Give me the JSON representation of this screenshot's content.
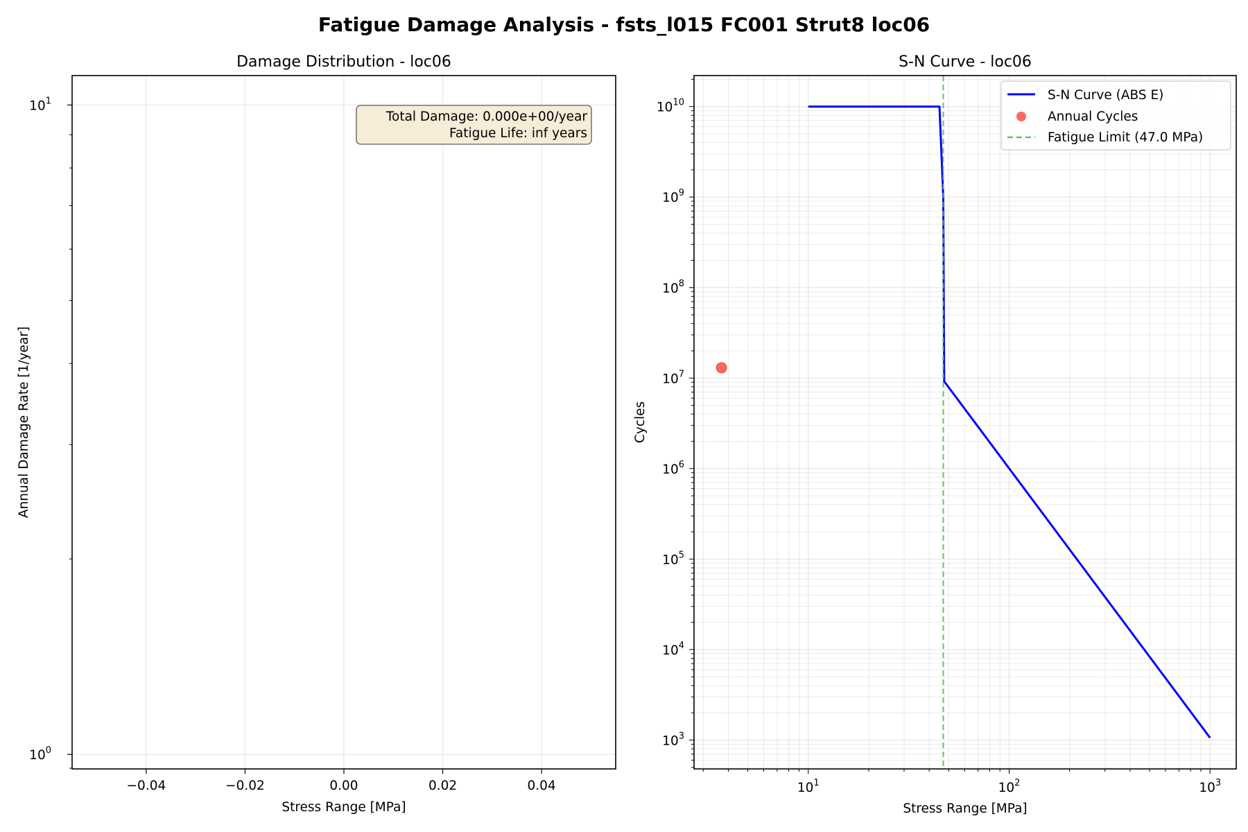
{
  "figure": {
    "title": "Fatigue Damage Analysis - fsts_l015 FC001 Strut8 loc06"
  },
  "chart_data": [
    {
      "type": "bar",
      "title": "Damage Distribution - loc06",
      "xlabel": "Stress Range [MPa]",
      "ylabel": "Annual Damage Rate [1/year]",
      "xlim": [
        -0.055,
        0.055
      ],
      "ylim": [
        0.95,
        11.1
      ],
      "yscale": "log",
      "xticks": [
        -0.04,
        -0.02,
        0.0,
        0.02,
        0.04
      ],
      "xtick_labels": [
        "−0.04",
        "−0.02",
        "0.00",
        "0.02",
        "0.04"
      ],
      "yticks_major": [
        {
          "value": 1,
          "base": "10",
          "exp": "0"
        },
        {
          "value": 10,
          "base": "10",
          "exp": "1"
        }
      ],
      "yticks_minor": [
        2,
        3,
        4,
        5,
        6,
        7,
        8,
        9
      ],
      "grid": true,
      "categories": [],
      "values": [],
      "annotation": {
        "lines": [
          "Total Damage: 0.000e+00/year",
          "Fatigue Life: inf years"
        ],
        "placement": "top-right",
        "face_color": "#f7ecd8"
      }
    },
    {
      "type": "line",
      "title": "S-N Curve - loc06",
      "xlabel": "Stress Range [MPa]",
      "ylabel": "Cycles",
      "xscale": "log",
      "yscale": "log",
      "xlim": [
        2.7,
        1350
      ],
      "ylim": [
        480,
        22000000000
      ],
      "grid": true,
      "xticks_major": [
        {
          "value": 10,
          "base": "10",
          "exp": "1"
        },
        {
          "value": 100,
          "base": "10",
          "exp": "2"
        },
        {
          "value": 1000,
          "base": "10",
          "exp": "3"
        }
      ],
      "yticks_major": [
        {
          "value": 1000,
          "base": "10",
          "exp": "3"
        },
        {
          "value": 10000,
          "base": "10",
          "exp": "4"
        },
        {
          "value": 100000,
          "base": "10",
          "exp": "5"
        },
        {
          "value": 1000000,
          "base": "10",
          "exp": "6"
        },
        {
          "value": 10000000,
          "base": "10",
          "exp": "7"
        },
        {
          "value": 100000000,
          "base": "10",
          "exp": "8"
        },
        {
          "value": 1000000000,
          "base": "10",
          "exp": "9"
        },
        {
          "value": 10000000000,
          "base": "10",
          "exp": "10"
        }
      ],
      "series": [
        {
          "name": "S-N Curve (ABS E)",
          "kind": "line",
          "color": "#0000ff",
          "x": [
            10,
            45,
            47,
            47.5,
            1000
          ],
          "y": [
            10000000000,
            10000000000,
            1000000000,
            9200000,
            1060
          ]
        },
        {
          "name": "Annual Cycles",
          "kind": "scatter",
          "color": "#ff4040",
          "x": [
            3.7
          ],
          "y": [
            13000000
          ]
        },
        {
          "name": "Fatigue Limit (47.0 MPa)",
          "kind": "vline",
          "color": "#5cb85c",
          "x": [
            47.0
          ]
        }
      ],
      "legend": {
        "placement": "top-right"
      }
    }
  ]
}
